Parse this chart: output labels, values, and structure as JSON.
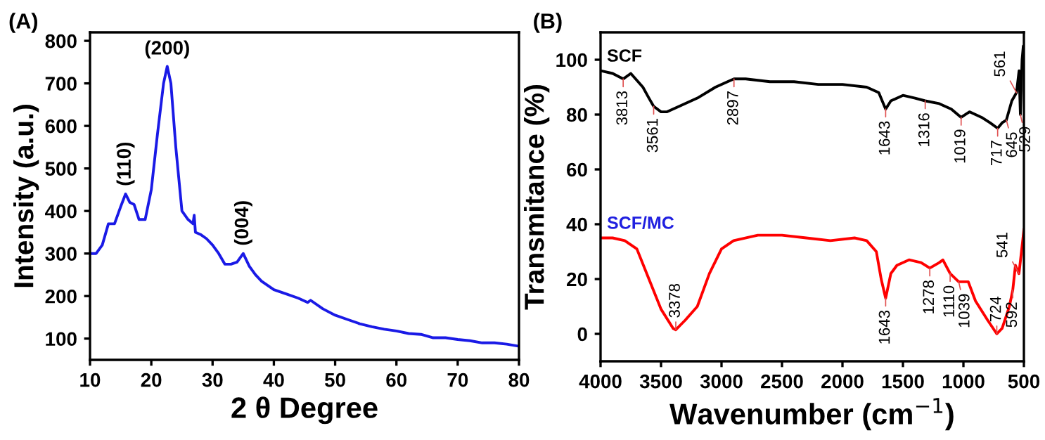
{
  "chart_data": [
    {
      "type": "line",
      "title": "(A)",
      "xlabel": "2 θ Degree",
      "ylabel": "Intensity (a.u.)",
      "xlim": [
        10,
        80
      ],
      "ylim": [
        50,
        820
      ],
      "xticks": [
        10,
        20,
        30,
        40,
        50,
        60,
        70,
        80
      ],
      "yticks": [
        100,
        200,
        300,
        400,
        500,
        600,
        700,
        800
      ],
      "grid": false,
      "legend": false,
      "series": [
        {
          "color": "#1a1ae6",
          "x": [
            10,
            11,
            12,
            13,
            14,
            15,
            15.8,
            16.5,
            17.2,
            18,
            19,
            20,
            21,
            22,
            22.6,
            23.2,
            24,
            25,
            26,
            26.8,
            27,
            27.2,
            28,
            29,
            30,
            31,
            32,
            33,
            34,
            35,
            36,
            37,
            38,
            40,
            42,
            44,
            45.5,
            46,
            48,
            50,
            52,
            54,
            56,
            58,
            60,
            62,
            64,
            66,
            68,
            70,
            72,
            74,
            76,
            78,
            80
          ],
          "values": [
            300,
            300,
            320,
            370,
            370,
            410,
            440,
            420,
            415,
            380,
            380,
            450,
            580,
            700,
            740,
            700,
            550,
            400,
            380,
            370,
            390,
            350,
            345,
            335,
            320,
            300,
            275,
            275,
            280,
            300,
            270,
            250,
            235,
            215,
            205,
            195,
            185,
            190,
            170,
            155,
            145,
            135,
            128,
            122,
            118,
            112,
            110,
            102,
            102,
            98,
            95,
            90,
            90,
            87,
            82
          ]
        }
      ],
      "annotations": [
        {
          "text": "(110)",
          "x": 15.8,
          "y": 440
        },
        {
          "text": "(200)",
          "x": 22.6,
          "y": 740
        },
        {
          "text": "(004)",
          "x": 35,
          "y": 300
        }
      ]
    },
    {
      "type": "line",
      "title": "(B)",
      "xlabel": "Wavenumber (cm$^{−1}$)",
      "ylabel": "Transmitance (%)",
      "xlim": [
        4000,
        500
      ],
      "ylim": [
        -10,
        110
      ],
      "xticks": [
        4000,
        3500,
        3000,
        2500,
        2000,
        1500,
        1000,
        500
      ],
      "yticks": [
        0,
        20,
        40,
        60,
        80,
        100
      ],
      "grid": false,
      "legend": false,
      "series": [
        {
          "name": "SCF",
          "color": "#000000",
          "x": [
            4000,
            3900,
            3813,
            3750,
            3650,
            3600,
            3561,
            3500,
            3450,
            3350,
            3200,
            3050,
            2950,
            2897,
            2800,
            2600,
            2400,
            2200,
            2000,
            1800,
            1700,
            1643,
            1600,
            1500,
            1400,
            1316,
            1200,
            1100,
            1019,
            950,
            850,
            780,
            717,
            680,
            645,
            600,
            561,
            540,
            529,
            515,
            505,
            500
          ],
          "values": [
            96,
            95,
            93,
            95,
            90,
            86,
            83,
            81,
            81,
            83,
            86,
            90,
            92,
            93,
            93,
            92,
            92,
            91,
            91,
            90,
            88,
            82,
            85,
            87,
            86,
            85,
            84,
            82,
            79,
            81,
            79,
            77,
            75,
            77,
            78,
            85,
            88,
            96,
            80,
            100,
            105,
            98
          ]
        },
        {
          "name": "SCF/MC",
          "color": "#ff0000",
          "x": [
            4000,
            3900,
            3800,
            3700,
            3600,
            3500,
            3400,
            3378,
            3300,
            3200,
            3100,
            3000,
            2900,
            2700,
            2500,
            2300,
            2100,
            1900,
            1800,
            1720,
            1680,
            1643,
            1600,
            1550,
            1450,
            1350,
            1278,
            1200,
            1170,
            1110,
            1039,
            960,
            900,
            800,
            724,
            680,
            620,
            592,
            570,
            541,
            520,
            500
          ],
          "values": [
            35,
            35,
            34,
            31,
            20,
            9,
            2,
            1.5,
            5,
            10,
            22,
            31,
            34,
            36,
            36,
            35,
            34,
            35,
            34,
            30,
            20,
            13,
            22,
            25,
            27,
            26,
            24,
            26,
            27,
            22,
            19,
            19,
            12,
            5,
            0,
            2,
            10,
            16,
            25,
            22,
            30,
            38
          ]
        }
      ],
      "annotations": [
        {
          "text": "3813",
          "x": 3813,
          "y": 93
        },
        {
          "text": "3561",
          "x": 3561,
          "y": 83
        },
        {
          "text": "2897",
          "x": 2897,
          "y": 93
        },
        {
          "text": "1643",
          "x": 1643,
          "y": 82
        },
        {
          "text": "1316",
          "x": 1316,
          "y": 85
        },
        {
          "text": "1019",
          "x": 1019,
          "y": 79
        },
        {
          "text": "717",
          "x": 717,
          "y": 75
        },
        {
          "text": "645",
          "x": 645,
          "y": 78
        },
        {
          "text": "561",
          "x": 561,
          "y": 88
        },
        {
          "text": "529",
          "x": 529,
          "y": 80
        },
        {
          "text": "3378",
          "x": 3378,
          "y": 1.5
        },
        {
          "text": "1643",
          "x": 1643,
          "y": 13
        },
        {
          "text": "1278",
          "x": 1278,
          "y": 24
        },
        {
          "text": "1110",
          "x": 1110,
          "y": 22
        },
        {
          "text": "1039",
          "x": 1039,
          "y": 19
        },
        {
          "text": "724",
          "x": 724,
          "y": 0
        },
        {
          "text": "592",
          "x": 592,
          "y": 16
        },
        {
          "text": "541",
          "x": 541,
          "y": 22
        }
      ]
    }
  ]
}
